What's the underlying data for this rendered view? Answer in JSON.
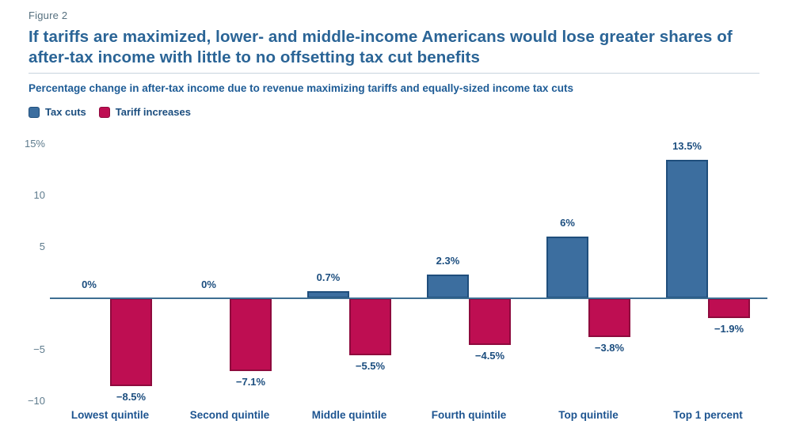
{
  "figure_label": "Figure 2",
  "title": "If tariffs are maximized, lower- and middle-income Americans would lose greater shares of after-tax income with little to no offsetting tax cut benefits",
  "subtitle": "Percentage change in after-tax income due to revenue maximizing tariffs and equally-sized income tax cuts",
  "colors": {
    "tax_cuts_fill": "#3C6E9F",
    "tax_cuts_border": "#1F4E7C",
    "tariff_fill": "#BE0E52",
    "tariff_border": "#8E0A3D",
    "axis_line": "#3E6E92",
    "title_blue": "#2A6496",
    "label_navy": "#1C4E7F",
    "tick_gray_blue": "#5E7B8D"
  },
  "legend": [
    {
      "label": "Tax cuts",
      "color": "#3C6E9F",
      "border": "#1F4E7C"
    },
    {
      "label": "Tariff increases",
      "color": "#BE0E52",
      "border": "#8E0A3D"
    }
  ],
  "chart_data": {
    "type": "bar",
    "title": "If tariffs are maximized, lower- and middle-income Americans would lose greater shares of after-tax income with little to no offsetting tax cut benefits",
    "subtitle": "Percentage change in after-tax income due to revenue maximizing tariffs and equally-sized income tax cuts",
    "categories": [
      "Lowest quintile",
      "Second quintile",
      "Middle quintile",
      "Fourth quintile",
      "Top quintile",
      "Top 1 percent"
    ],
    "series": [
      {
        "name": "Tax cuts",
        "values": [
          0,
          0,
          0.7,
          2.3,
          6,
          13.5
        ],
        "labels": [
          "0%",
          "0%",
          "0.7%",
          "2.3%",
          "6%",
          "13.5%"
        ],
        "color": "#3C6E9F",
        "border": "#1F4E7C"
      },
      {
        "name": "Tariff increases",
        "values": [
          -8.5,
          -7.1,
          -5.5,
          -4.5,
          -3.8,
          -1.9
        ],
        "labels": [
          "−8.5%",
          "−7.1%",
          "−5.5%",
          "−4.5%",
          "−3.8%",
          "−1.9%"
        ],
        "color": "#BE0E52",
        "border": "#8E0A3D"
      }
    ],
    "xlabel": "",
    "ylabel": "",
    "ylim": [
      -10,
      15
    ],
    "y_ticks": [
      {
        "value": 15,
        "label": "15%"
      },
      {
        "value": 10,
        "label": "10"
      },
      {
        "value": 5,
        "label": "5"
      },
      {
        "value": -5,
        "label": "−5"
      },
      {
        "value": -10,
        "label": "−10"
      }
    ],
    "grid": false,
    "legend_position": "top-left",
    "data_labels": true
  }
}
